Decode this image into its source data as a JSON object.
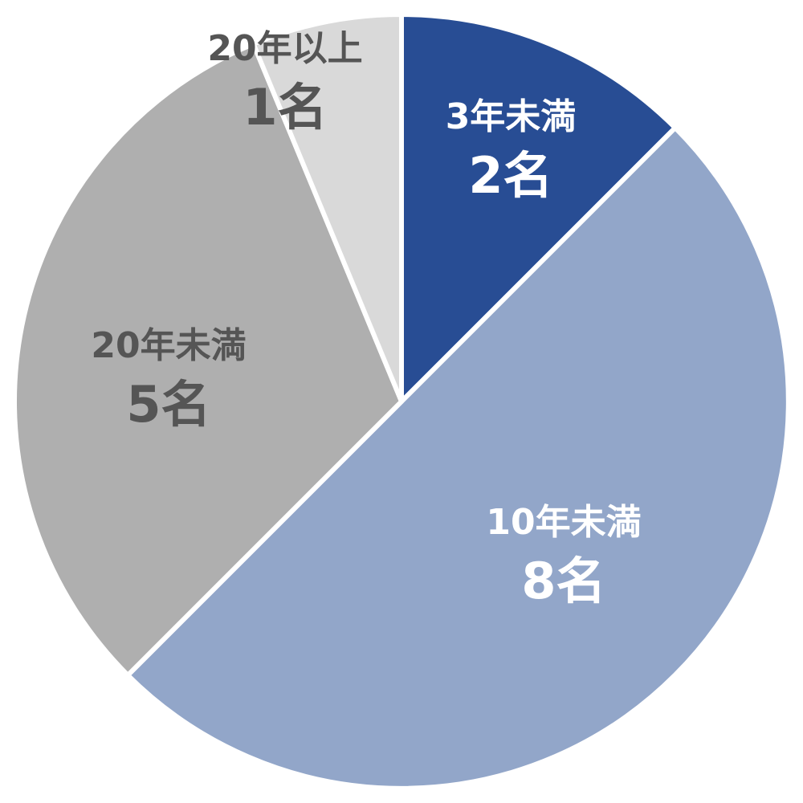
{
  "chart_data": {
    "type": "pie",
    "title": "",
    "unit": "名",
    "categories": [
      "3年未満",
      "10年未満",
      "20年未満",
      "20年以上"
    ],
    "values": [
      2,
      8,
      5,
      1
    ],
    "value_labels": [
      "2名",
      "8名",
      "5名",
      "1名"
    ],
    "colors": [
      "#284d94",
      "#92a6c9",
      "#afafaf",
      "#d9d9d9"
    ],
    "label_colors": [
      "#ffffff",
      "#ffffff",
      "#555555",
      "#555555"
    ],
    "start_angle_deg": 0,
    "direction": "clockwise",
    "legend": "none"
  }
}
